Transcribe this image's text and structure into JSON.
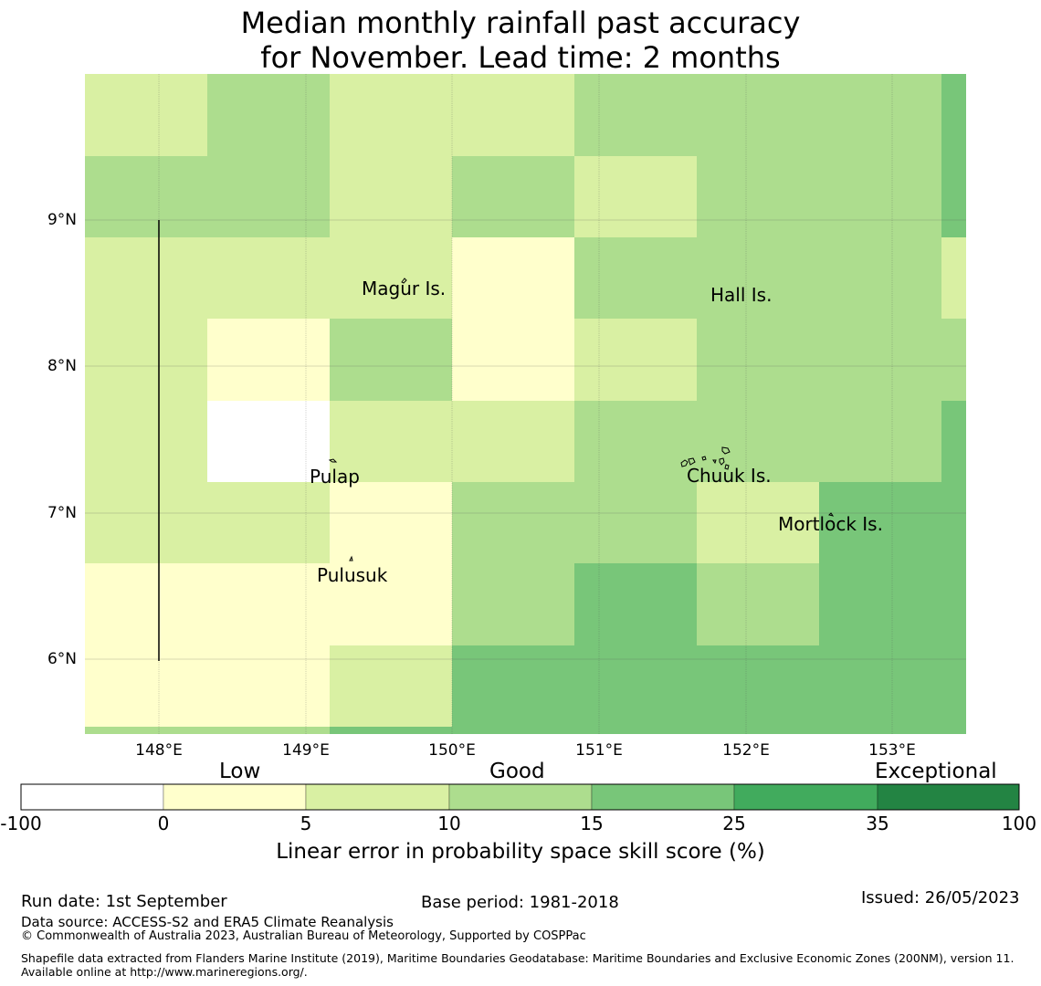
{
  "title": {
    "line1": "Median monthly rainfall past accuracy",
    "line2": "for November. Lead time: 2 months"
  },
  "map": {
    "lon_range": [
      147.5,
      153.5
    ],
    "lat_range": [
      5.5,
      10.0
    ],
    "xticks": [
      "148°E",
      "149°E",
      "150°E",
      "151°E",
      "152°E",
      "153°E"
    ],
    "yticks": [
      "9°N",
      "8°N",
      "7°N",
      "6°N"
    ],
    "places": [
      "Magur Is.",
      "Hall Is.",
      "Pulap",
      "Chuuk Is.",
      "Mortlock Is.",
      "Pulusuk"
    ],
    "grid_colors": [
      "#ffffff",
      "#ffffcc",
      "#d9f0a3",
      "#addd8e",
      "#78c679",
      "#41ab5d",
      "#238443"
    ]
  },
  "legend": {
    "categories": [
      "Low",
      "Good",
      "Exceptional"
    ],
    "ticks": [
      "-100",
      "0",
      "5",
      "10",
      "15",
      "25",
      "35",
      "100"
    ],
    "label": "Linear error in probability space skill score (%)"
  },
  "footer": {
    "run_date": "Run date: 1st September",
    "base_period": "Base period: 1981-2018",
    "issued": "Issued: 26/05/2023",
    "data_source": "Data source: ACCESS-S2 and ERA5 Climate Reanalysis",
    "copyright": "© Commonwealth of Australia 2023, Australian Bureau of Meteorology, Supported by COSPPac",
    "shapefile": "Shapefile data extracted from Flanders Marine Institute (2019), Maritime Boundaries Geodatabase: Maritime Boundaries and Exclusive Economic Zones (200NM), version 11. Available online at http://www.marineregions.org/."
  }
}
